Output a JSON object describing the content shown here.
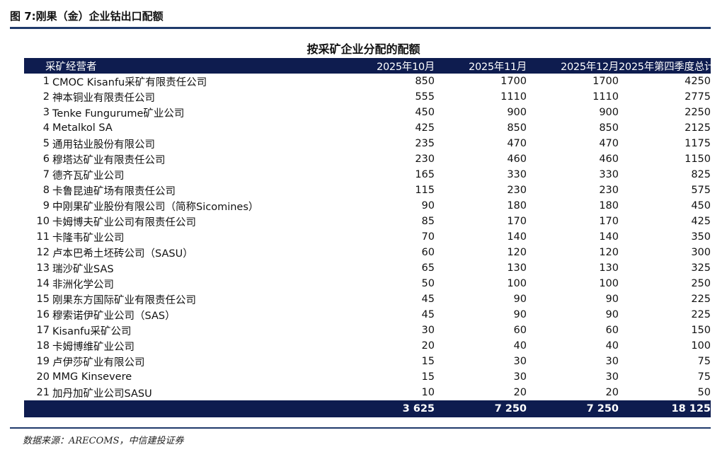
{
  "figure_title": "图 7:刚果（金）企业钴出口配额",
  "table_title": "按采矿企业分配的配额",
  "headers": {
    "name": "采矿经营者",
    "col1": "2025年10月",
    "col2": "2025年11月",
    "col3": "2025年12月",
    "col4": "2025年第四季度总计"
  },
  "rows": [
    {
      "idx": "1",
      "name": "CMOC Kisanfu采矿有限责任公司",
      "v1": "850",
      "v2": "1700",
      "v3": "1700",
      "v4": "4250"
    },
    {
      "idx": "2",
      "name": "神本铜业有限责任公司",
      "v1": "555",
      "v2": "1110",
      "v3": "1110",
      "v4": "2775"
    },
    {
      "idx": "3",
      "name": "Tenke Fungurume矿业公司",
      "v1": "450",
      "v2": "900",
      "v3": "900",
      "v4": "2250"
    },
    {
      "idx": "4",
      "name": "Metalkol SA",
      "v1": "425",
      "v2": "850",
      "v3": "850",
      "v4": "2125"
    },
    {
      "idx": "5",
      "name": "通用钴业股份有限公司",
      "v1": "235",
      "v2": "470",
      "v3": "470",
      "v4": "1175"
    },
    {
      "idx": "6",
      "name": "穆塔达矿业有限责任公司",
      "v1": "230",
      "v2": "460",
      "v3": "460",
      "v4": "1150"
    },
    {
      "idx": "7",
      "name": "德齐瓦矿业公司",
      "v1": "165",
      "v2": "330",
      "v3": "330",
      "v4": "825"
    },
    {
      "idx": "8",
      "name": "卡鲁昆迪矿场有限责任公司",
      "v1": "115",
      "v2": "230",
      "v3": "230",
      "v4": "575"
    },
    {
      "idx": "9",
      "name": "中刚果矿业股份有限公司（简称Sicomines）",
      "v1": "90",
      "v2": "180",
      "v3": "180",
      "v4": "450"
    },
    {
      "idx": "10",
      "name": "卡姆博夫矿业公司有限责任公司",
      "v1": "85",
      "v2": "170",
      "v3": "170",
      "v4": "425"
    },
    {
      "idx": "11",
      "name": "卡隆韦矿业公司",
      "v1": "70",
      "v2": "140",
      "v3": "140",
      "v4": "350"
    },
    {
      "idx": "12",
      "name": "卢本巴希土坯砖公司（SASU）",
      "v1": "60",
      "v2": "120",
      "v3": "120",
      "v4": "300"
    },
    {
      "idx": "13",
      "name": "瑞沙矿业SAS",
      "v1": "65",
      "v2": "130",
      "v3": "130",
      "v4": "325"
    },
    {
      "idx": "14",
      "name": "非洲化学公司",
      "v1": "50",
      "v2": "100",
      "v3": "100",
      "v4": "250"
    },
    {
      "idx": "15",
      "name": "刚果东方国际矿业有限责任公司",
      "v1": "45",
      "v2": "90",
      "v3": "90",
      "v4": "225"
    },
    {
      "idx": "16",
      "name": "穆索诺伊矿业公司（SAS）",
      "v1": "45",
      "v2": "90",
      "v3": "90",
      "v4": "225"
    },
    {
      "idx": "17",
      "name": "Kisanfu采矿公司",
      "v1": "30",
      "v2": "60",
      "v3": "60",
      "v4": "150"
    },
    {
      "idx": "18",
      "name": "卡姆博维矿业公司",
      "v1": "20",
      "v2": "40",
      "v3": "40",
      "v4": "100"
    },
    {
      "idx": "19",
      "name": "卢伊莎矿业有限公司",
      "v1": "15",
      "v2": "30",
      "v3": "30",
      "v4": "75"
    },
    {
      "idx": "20",
      "name": "MMG Kinsevere",
      "v1": "15",
      "v2": "30",
      "v3": "30",
      "v4": "75"
    },
    {
      "idx": "21",
      "name": "加丹加矿业公司SASU",
      "v1": "10",
      "v2": "20",
      "v3": "20",
      "v4": "50"
    }
  ],
  "totals": {
    "v1": "3 625",
    "v2": "7 250",
    "v3": "7 250",
    "v4": "18 125"
  },
  "source": "数据来源：ARECOMS，中信建投证券",
  "colors": {
    "header_bg": "#0e1c4f",
    "rule": "#1f3a6b"
  }
}
